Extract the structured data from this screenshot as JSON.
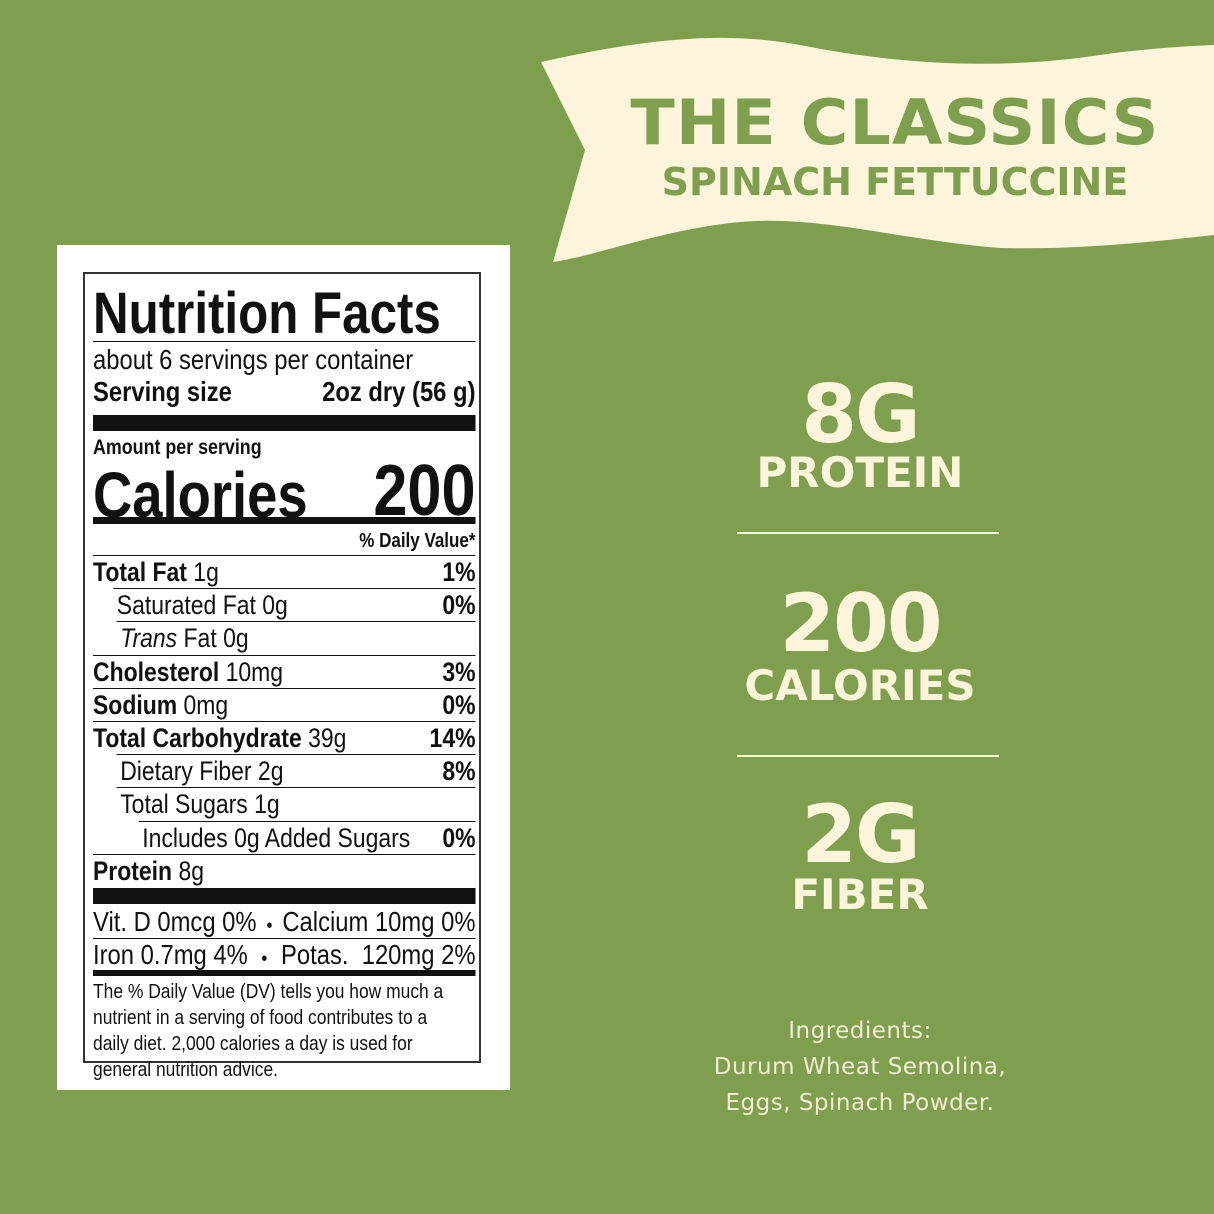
{
  "colors": {
    "background": "#7ea04e",
    "cream": "#fdf4dc"
  },
  "banner": {
    "title": "THE CLASSICS",
    "subtitle": "SPINACH FETTUCCINE"
  },
  "nutrition": {
    "title": "Nutrition Facts",
    "servings": "about 6 servings per container",
    "serving_size_label": "Serving size",
    "serving_size_value": "2oz dry (56 g)",
    "amount_per_serving": "Amount per serving",
    "calories_label": "Calories",
    "calories_value": "200",
    "dv_header": "% Daily Value*",
    "rows": [
      {
        "name": "Total Fat",
        "amount": " 1g",
        "dv": "1%"
      },
      {
        "name": "Saturated Fat 0g",
        "amount": "",
        "dv": "0%"
      },
      {
        "name": "Trans",
        "amount": " Fat 0g",
        "dv": ""
      },
      {
        "name": "Cholesterol",
        "amount": " 10mg",
        "dv": "3%"
      },
      {
        "name": "Sodium",
        "amount": " 0mg",
        "dv": "0%"
      },
      {
        "name": "Total Carbohydrate",
        "amount": " 39g",
        "dv": "14%"
      },
      {
        "name": "Dietary Fiber 2g",
        "amount": "",
        "dv": "8%"
      },
      {
        "name": "Total Sugars 1g",
        "amount": "",
        "dv": ""
      },
      {
        "name": "Includes 0g Added Sugars",
        "amount": "",
        "dv": "0%"
      },
      {
        "name": "Protein",
        "amount": " 8g",
        "dv": ""
      }
    ],
    "vitamins": [
      {
        "left": "Vit. D 0mcg 0%",
        "right": "Calcium 10mg 0%"
      },
      {
        "left": "Iron 0.7mg 4%",
        "right": "Potas.  120mg 2%"
      }
    ],
    "separator": "•",
    "footnote": "The % Daily Value (DV) tells you how much a nutrient in a serving of food contributes to a daily diet. 2,000 calories a day is used for general nutrition advice."
  },
  "stats": [
    {
      "value": "8G",
      "label": "PROTEIN"
    },
    {
      "value": "200",
      "label": "CALORIES"
    },
    {
      "value": "2G",
      "label": "FIBER"
    }
  ],
  "ingredients": {
    "heading": "Ingredients:",
    "line1": "Durum Wheat Semolina,",
    "line2": "Eggs, Spinach Powder."
  }
}
